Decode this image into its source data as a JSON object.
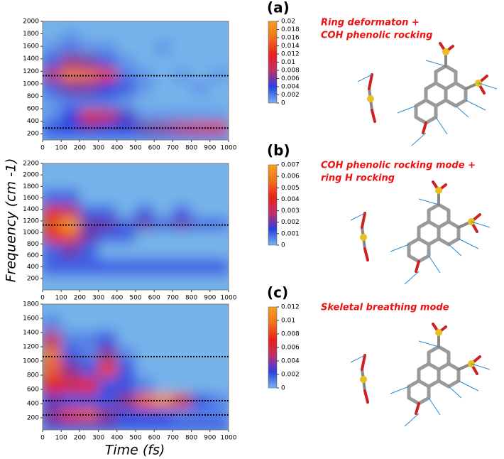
{
  "colormap": [
    "#76b3ea",
    "#2b3fe0",
    "#c0306a",
    "#e8231a",
    "#f07020",
    "#f7a020"
  ],
  "xlabel": "Time (fs)",
  "ylabel": "Frequency (cm -1)",
  "chart_data": [
    {
      "type": "heatmap",
      "panel_label": "(a)",
      "annotation": [
        "Ring deformaton +",
        "COH phenolic rocking"
      ],
      "xlim": [
        0,
        1000
      ],
      "xticks": [
        0,
        100,
        200,
        300,
        400,
        500,
        600,
        700,
        800,
        900,
        1000
      ],
      "ylim": [
        100,
        2000
      ],
      "yticks": [
        200,
        400,
        600,
        800,
        1000,
        1200,
        1400,
        1600,
        1800,
        2000
      ],
      "zlim": [
        0,
        0.02
      ],
      "zticks": [
        0,
        0.002,
        0.004,
        0.006,
        0.008,
        0.01,
        0.012,
        0.014,
        0.016,
        0.018,
        0.02
      ],
      "hlines": [
        1130,
        290
      ],
      "x": [
        50,
        150,
        250,
        350,
        450,
        550,
        650,
        750,
        850,
        950
      ],
      "y": [
        150,
        290,
        480,
        700,
        950,
        1150,
        1350,
        1600,
        1800,
        1950
      ],
      "z": [
        [
          0.002,
          0.002,
          0.002,
          0.002,
          0.002,
          0.002,
          0.002,
          0.002,
          0.002,
          0.002
        ],
        [
          0.004,
          0.004,
          0.005,
          0.004,
          0.004,
          0.006,
          0.007,
          0.009,
          0.011,
          0.012
        ],
        [
          0.001,
          0.004,
          0.011,
          0.009,
          0.005,
          0.001,
          0.001,
          0.001,
          0.001,
          0.001
        ],
        [
          0.001,
          0.002,
          0.002,
          0.002,
          0.001,
          0,
          0,
          0,
          0,
          0
        ],
        [
          0.003,
          0.006,
          0.006,
          0.004,
          0.003,
          0.001,
          0,
          0,
          0.001,
          0
        ],
        [
          0.008,
          0.017,
          0.016,
          0.013,
          0.002,
          0.001,
          0,
          0.001,
          0,
          0.001
        ],
        [
          0.003,
          0.007,
          0.006,
          0.003,
          0.001,
          0,
          0,
          0,
          0,
          0
        ],
        [
          0.001,
          0.002,
          0.001,
          0.001,
          0,
          0,
          0.001,
          0,
          0,
          0
        ],
        [
          0,
          0.001,
          0,
          0,
          0,
          0,
          0,
          0,
          0,
          0
        ],
        [
          0,
          0,
          0,
          0,
          0,
          0,
          0,
          0,
          0,
          0
        ]
      ]
    },
    {
      "type": "heatmap",
      "panel_label": "(b)",
      "annotation": [
        "COH phenolic rocking mode +",
        "ring H rocking"
      ],
      "xlim": [
        0,
        1000
      ],
      "xticks": [
        0,
        100,
        200,
        300,
        400,
        500,
        600,
        700,
        800,
        900,
        1000
      ],
      "ylim": [
        0,
        2200
      ],
      "yticks": [
        200,
        400,
        600,
        800,
        1000,
        1200,
        1400,
        1600,
        1800,
        2000,
        2200
      ],
      "zlim": [
        0,
        0.007
      ],
      "zticks": [
        0,
        0.001,
        0.002,
        0.003,
        0.004,
        0.005,
        0.006,
        0.007
      ],
      "hlines": [
        1130
      ],
      "x": [
        50,
        150,
        250,
        350,
        450,
        550,
        650,
        750,
        850,
        950
      ],
      "y": [
        100,
        400,
        700,
        950,
        1150,
        1350,
        1600,
        1900,
        2150
      ],
      "z": [
        [
          0,
          0,
          0,
          0,
          0,
          0,
          0,
          0,
          0,
          0
        ],
        [
          0.001,
          0.001,
          0.001,
          0.001,
          0.001,
          0.001,
          0.001,
          0.001,
          0.001,
          0.001
        ],
        [
          0.001,
          0.002,
          0.001,
          0,
          0,
          0,
          0,
          0,
          0,
          0
        ],
        [
          0.004,
          0.005,
          0.002,
          0.001,
          0.001,
          0,
          0,
          0,
          0,
          0
        ],
        [
          0.005,
          0.007,
          0.002,
          0.002,
          0.001,
          0.002,
          0.001,
          0.002,
          0.001,
          0.001
        ],
        [
          0.004,
          0.003,
          0.001,
          0.001,
          0,
          0.001,
          0,
          0.001,
          0,
          0
        ],
        [
          0.001,
          0.001,
          0,
          0,
          0,
          0,
          0,
          0,
          0,
          0
        ],
        [
          0,
          0,
          0,
          0,
          0,
          0,
          0,
          0,
          0,
          0
        ],
        [
          0,
          0,
          0,
          0,
          0,
          0,
          0,
          0,
          0,
          0
        ]
      ]
    },
    {
      "type": "heatmap",
      "panel_label": "(c)",
      "annotation": [
        "Skeletal breathing mode"
      ],
      "xlim": [
        0,
        1000
      ],
      "xticks": [
        0,
        100,
        200,
        300,
        400,
        500,
        600,
        700,
        800,
        900,
        1000
      ],
      "ylim": [
        30,
        1800
      ],
      "yticks": [
        200,
        400,
        600,
        800,
        1000,
        1200,
        1400,
        1600,
        1800
      ],
      "zlim": [
        0,
        0.012
      ],
      "zticks": [
        0,
        0.002,
        0.004,
        0.006,
        0.008,
        0.01,
        0.012
      ],
      "hlines": [
        1060,
        440,
        240
      ],
      "x": [
        50,
        150,
        250,
        350,
        450,
        550,
        650,
        750,
        850,
        950
      ],
      "y": [
        100,
        240,
        440,
        650,
        900,
        1100,
        1300,
        1550,
        1750
      ],
      "z": [
        [
          0.003,
          0.003,
          0.003,
          0.003,
          0.002,
          0.002,
          0.002,
          0.002,
          0.002,
          0.002
        ],
        [
          0.004,
          0.008,
          0.009,
          0.004,
          0.002,
          0.002,
          0.002,
          0.001,
          0.001,
          0.001
        ],
        [
          0.003,
          0.002,
          0.002,
          0.002,
          0.004,
          0.009,
          0.011,
          0.006,
          0.002,
          0.001
        ],
        [
          0.007,
          0.006,
          0.007,
          0.002,
          0.002,
          0.001,
          0,
          0,
          0,
          0
        ],
        [
          0.009,
          0.004,
          0.002,
          0.008,
          0.002,
          0,
          0,
          0,
          0,
          0
        ],
        [
          0.01,
          0.002,
          0.001,
          0.004,
          0.001,
          0,
          0,
          0,
          0,
          0
        ],
        [
          0.005,
          0.001,
          0.001,
          0.002,
          0,
          0,
          0,
          0,
          0,
          0
        ],
        [
          0.001,
          0,
          0,
          0,
          0,
          0,
          0,
          0,
          0,
          0
        ],
        [
          0,
          0,
          0,
          0,
          0,
          0,
          0,
          0,
          0,
          0
        ]
      ]
    }
  ]
}
